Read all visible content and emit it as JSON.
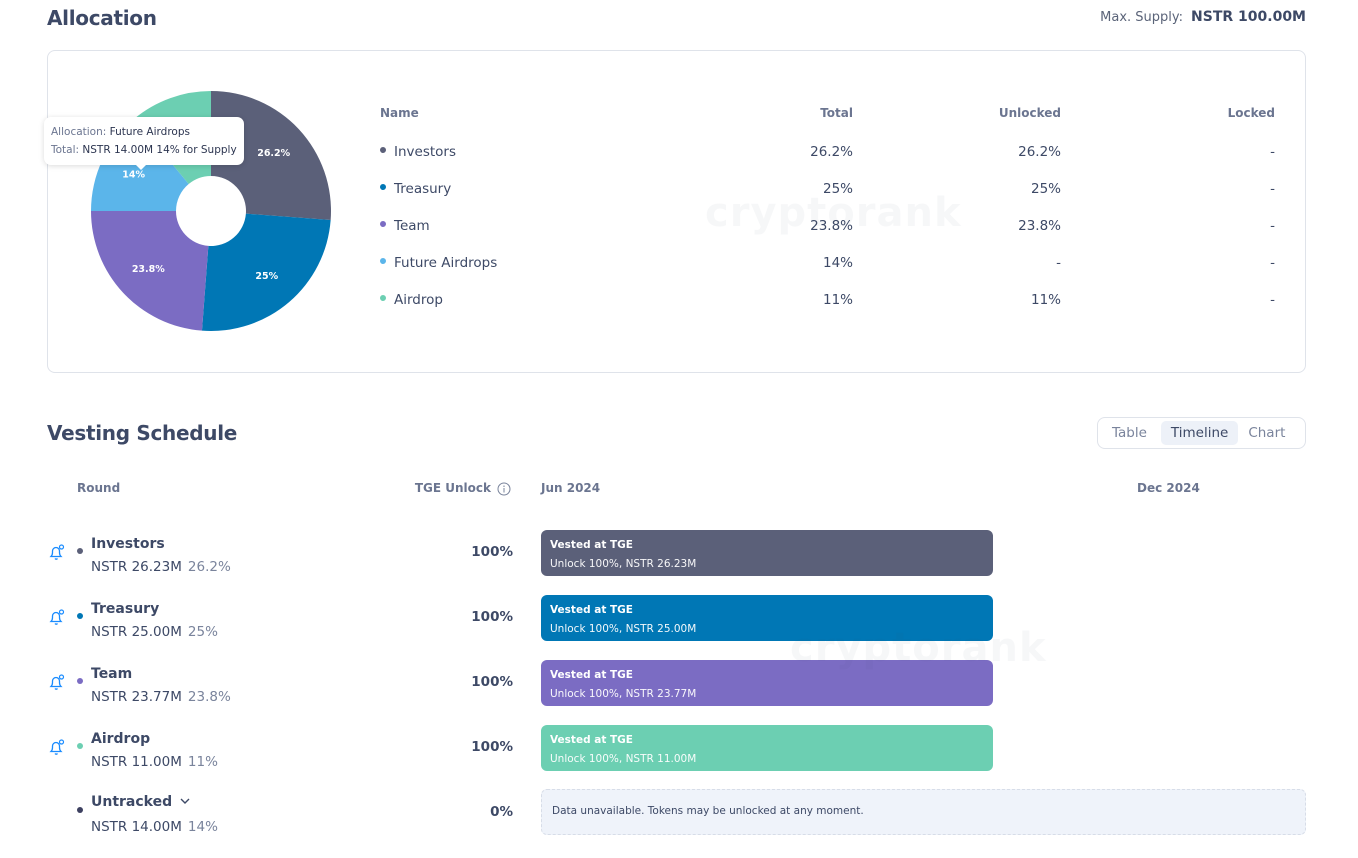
{
  "allocation": {
    "title": "Allocation",
    "max_supply_label": "Max. Supply:",
    "max_supply_value": "NSTR 100.00M",
    "watermark": "cryptorank",
    "table": {
      "headers": {
        "name": "Name",
        "total": "Total",
        "unlocked": "Unlocked",
        "locked": "Locked"
      },
      "rows": [
        {
          "name": "Investors",
          "total": "26.2%",
          "unlocked": "26.2%",
          "locked": "-",
          "color": "#5b6079"
        },
        {
          "name": "Treasury",
          "total": "25%",
          "unlocked": "25%",
          "locked": "-",
          "color": "#0077b5"
        },
        {
          "name": "Team",
          "total": "23.8%",
          "unlocked": "23.8%",
          "locked": "-",
          "color": "#7b6cc3"
        },
        {
          "name": "Future Airdrops",
          "total": "14%",
          "unlocked": "-",
          "locked": "-",
          "color": "#5bb5ea"
        },
        {
          "name": "Airdrop",
          "total": "11%",
          "unlocked": "11%",
          "locked": "-",
          "color": "#6ccfb2"
        }
      ]
    },
    "tooltip": {
      "allocation_label": "Allocation:",
      "allocation_value": "Future Airdrops",
      "total_label": "Total:",
      "total_value": "NSTR 14.00M 14% for Supply"
    }
  },
  "chart_data": {
    "type": "pie",
    "donut": true,
    "categories": [
      "Investors",
      "Treasury",
      "Team",
      "Future Airdrops",
      "Airdrop"
    ],
    "values": [
      26.2,
      25,
      23.8,
      14,
      11
    ],
    "labels": [
      "26.2%",
      "25%",
      "23.8%",
      "14%",
      ""
    ],
    "colors": [
      "#5b6079",
      "#0077b5",
      "#7b6cc3",
      "#5bb5ea",
      "#6ccfb2"
    ]
  },
  "vesting": {
    "title": "Vesting Schedule",
    "tabs": [
      {
        "label": "Table",
        "active": false
      },
      {
        "label": "Timeline",
        "active": true
      },
      {
        "label": "Chart",
        "active": false
      }
    ],
    "headers": {
      "round": "Round",
      "tge": "TGE Unlock",
      "start": "Jun 2024",
      "mid": "Dec 2024"
    },
    "watermark": "cryptorank",
    "rows": [
      {
        "name": "Investors",
        "amount": "NSTR 26.23M",
        "pct": "26.2%",
        "tge": "100%",
        "bar_title": "Vested at TGE",
        "bar_sub": "Unlock 100%, NSTR 26.23M",
        "color": "#5b6079"
      },
      {
        "name": "Treasury",
        "amount": "NSTR 25.00M",
        "pct": "25%",
        "tge": "100%",
        "bar_title": "Vested at TGE",
        "bar_sub": "Unlock 100%, NSTR 25.00M",
        "color": "#0077b5"
      },
      {
        "name": "Team",
        "amount": "NSTR 23.77M",
        "pct": "23.8%",
        "tge": "100%",
        "bar_title": "Vested at TGE",
        "bar_sub": "Unlock 100%, NSTR 23.77M",
        "color": "#7b6cc3"
      },
      {
        "name": "Airdrop",
        "amount": "NSTR 11.00M",
        "pct": "11%",
        "tge": "100%",
        "bar_title": "Vested at TGE",
        "bar_sub": "Unlock 100%, NSTR 11.00M",
        "color": "#6ccfb2"
      }
    ],
    "untracked": {
      "name": "Untracked",
      "amount": "NSTR 14.00M",
      "pct": "14%",
      "tge": "0%",
      "message": "Data unavailable. Tokens may be unlocked at any moment.",
      "color": "#3d4060"
    }
  }
}
